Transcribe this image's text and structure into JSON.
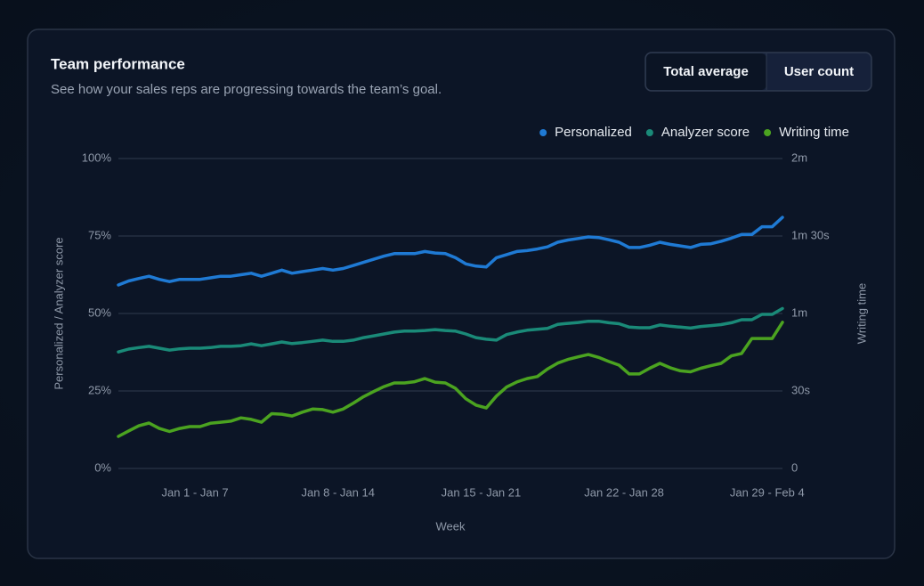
{
  "card": {
    "title": "Team performance",
    "subtitle": "See how your sales reps are progressing towards the team’s goal."
  },
  "toggle": {
    "options": [
      "Total average",
      "User count"
    ]
  },
  "chart_data": {
    "type": "line",
    "x": [
      0,
      1,
      2,
      3,
      4,
      5,
      6,
      7,
      8,
      9,
      10,
      11,
      12,
      13,
      14,
      15,
      16,
      17,
      18,
      19,
      20,
      21,
      22,
      23,
      24,
      25,
      26,
      27,
      28,
      29,
      30,
      31,
      32,
      33,
      34,
      35,
      36,
      37,
      38,
      39,
      40,
      41,
      42,
      43,
      44,
      45,
      46,
      47,
      48,
      49,
      50,
      51,
      52,
      53,
      54,
      55,
      56,
      57,
      58,
      59,
      60,
      61,
      62,
      63,
      64,
      65
    ],
    "xlim": [
      0,
      65
    ],
    "xticks": [
      {
        "value": 7.5,
        "label": "Jan 1 - Jan 7"
      },
      {
        "value": 21.5,
        "label": "Jan 8 - Jan 14"
      },
      {
        "value": 35.5,
        "label": "Jan 15 - Jan 21"
      },
      {
        "value": 49.5,
        "label": "Jan 22 - Jan 28"
      },
      {
        "value": 63.5,
        "label": "Jan 29 - Feb 4"
      }
    ],
    "xlabel": "Week",
    "ylabel": "Personalized / Analyzer score",
    "y2label": "Writing time",
    "ylim": [
      0,
      100
    ],
    "yticks": [
      {
        "value": 0,
        "label": "0%"
      },
      {
        "value": 25,
        "label": "25%"
      },
      {
        "value": 50,
        "label": "50%"
      },
      {
        "value": 75,
        "label": "75%"
      },
      {
        "value": 100,
        "label": "100%"
      }
    ],
    "y2lim": [
      0,
      120
    ],
    "y2ticks": [
      0,
      {
        "value": 30,
        "label": "30s"
      },
      {
        "value": 60,
        "label": "1m"
      },
      {
        "value": 90,
        "label": "1m 30s"
      },
      {
        "value": 120,
        "label": "2m"
      }
    ],
    "grid": true,
    "legend": "top-right",
    "series": [
      {
        "name": "Personalized",
        "color": "#1f7ad4",
        "values": [
          59.2,
          60.5,
          61.3,
          62,
          61,
          60.3,
          61,
          61,
          61,
          61.5,
          62,
          62,
          62.5,
          63,
          62,
          63,
          64,
          63,
          63.5,
          64,
          64.5,
          64,
          64.5,
          65.5,
          66.5,
          67.5,
          68.5,
          69.3,
          69.3,
          69.3,
          70,
          69.5,
          69.3,
          68,
          66,
          65.3,
          65,
          68,
          69,
          70,
          70.3,
          70.8,
          71.5,
          73,
          73.7,
          74.2,
          74.7,
          74.5,
          73.8,
          73,
          71.3,
          71.3,
          72,
          73,
          72.3,
          71.8,
          71.3,
          72.3,
          72.5,
          73.3,
          74.3,
          75.5,
          75.5,
          78,
          78,
          81
        ]
      },
      {
        "name": "Analyzer score",
        "color": "#1a8a78",
        "values": [
          37.6,
          38.5,
          39,
          39.4,
          38.8,
          38.2,
          38.6,
          38.8,
          38.8,
          39,
          39.4,
          39.4,
          39.6,
          40.2,
          39.6,
          40.2,
          40.8,
          40.3,
          40.6,
          41,
          41.4,
          41,
          41,
          41.4,
          42.2,
          42.8,
          43.4,
          44,
          44.3,
          44.3,
          44.5,
          44.8,
          44.5,
          44.3,
          43.4,
          42.2,
          41.7,
          41.4,
          43.2,
          44,
          44.6,
          44.9,
          45.2,
          46.5,
          46.8,
          47.1,
          47.5,
          47.5,
          47,
          46.7,
          45.6,
          45.4,
          45.4,
          46.3,
          45.9,
          45.6,
          45.3,
          45.8,
          46.1,
          46.4,
          47,
          48,
          48,
          49.7,
          49.7,
          51.6
        ]
      },
      {
        "name": "Writing time",
        "color": "#4ba320",
        "axis": "y2",
        "values": [
          12.4,
          14.5,
          16.5,
          17.6,
          15.5,
          14.3,
          15.5,
          16.2,
          16.2,
          17.5,
          17.9,
          18.3,
          19.6,
          19,
          17.9,
          21.2,
          21,
          20.3,
          21.8,
          23,
          22.8,
          21.8,
          23,
          25.3,
          27.8,
          29.8,
          31.7,
          33.1,
          33.1,
          33.6,
          34.8,
          33.4,
          33.1,
          31,
          27,
          24.5,
          23.4,
          28,
          31.5,
          33.5,
          34.8,
          35.6,
          38.5,
          40.8,
          42.2,
          43.2,
          44.1,
          43,
          41.4,
          40,
          36.6,
          36.6,
          38.8,
          40.7,
          39,
          37.8,
          37.4,
          38.8,
          39.8,
          40.7,
          43.6,
          44.5,
          50.3,
          50.3,
          50.3,
          56.6
        ]
      }
    ]
  }
}
